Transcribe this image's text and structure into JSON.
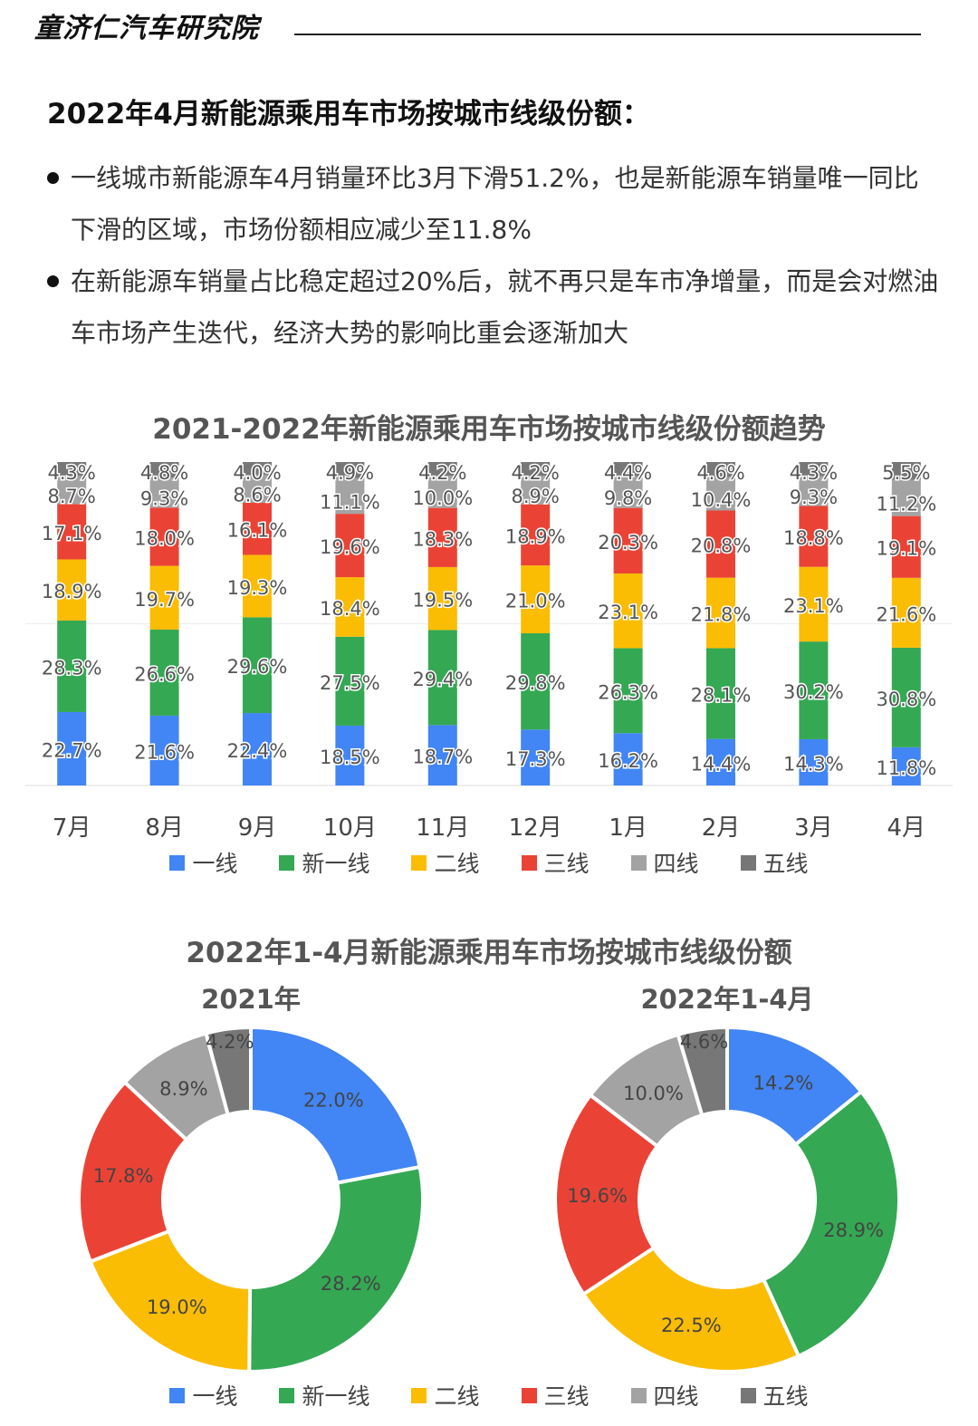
{
  "brand": "童济仁汽车研究院",
  "heading": "2022年4月新能源乘用车市场按城市线级份额：",
  "bullets": [
    "一线城市新能源车4月销量环比3月下滑51.2%，也是新能源车销量唯一同比下滑的区域，市场份额相应减少至11.8%",
    "在新能源车销量占比稳定超过20%后，就不再只是车市净增量，而是会对燃油车市场产生迭代，经济大势的影响比重会逐渐加大"
  ],
  "colors": {
    "一线": "#4285F4",
    "新一线": "#34A853",
    "二线": "#FBBC04",
    "三线": "#EA4335",
    "四线": "#A3A3A3",
    "五线": "#777777"
  },
  "chart_data": [
    {
      "type": "bar",
      "stacked": true,
      "title": "2021-2022年新能源乘用车市场按城市线级份额趋势",
      "categories": [
        "7月",
        "8月",
        "9月",
        "10月",
        "11月",
        "12月",
        "1月",
        "2月",
        "3月",
        "4月"
      ],
      "series": [
        {
          "name": "一线",
          "values": [
            "22.7%",
            "21.6%",
            "22.4%",
            "18.5%",
            "18.7%",
            "17.3%",
            "16.2%",
            "14.4%",
            "14.3%",
            "11.8%"
          ]
        },
        {
          "name": "新一线",
          "values": [
            "28.3%",
            "26.6%",
            "29.6%",
            "27.5%",
            "29.4%",
            "29.8%",
            "26.3%",
            "28.1%",
            "30.2%",
            "30.8%"
          ]
        },
        {
          "name": "二线",
          "values": [
            "18.9%",
            "19.7%",
            "19.3%",
            "18.4%",
            "19.5%",
            "21.0%",
            "23.1%",
            "21.8%",
            "23.1%",
            "21.6%"
          ]
        },
        {
          "name": "三线",
          "values": [
            "17.1%",
            "18.0%",
            "16.1%",
            "19.6%",
            "18.3%",
            "18.9%",
            "20.3%",
            "20.8%",
            "18.8%",
            "19.1%"
          ]
        },
        {
          "name": "四线",
          "values": [
            "8.7%",
            "9.3%",
            "8.6%",
            "11.1%",
            "10.0%",
            "8.9%",
            "9.8%",
            "10.4%",
            "9.3%",
            "11.2%"
          ]
        },
        {
          "name": "五线",
          "values": [
            "4.3%",
            "4.8%",
            "4.0%",
            "4.9%",
            "4.2%",
            "4.2%",
            "4.4%",
            "4.6%",
            "4.3%",
            "5.5%"
          ]
        }
      ],
      "ylim": [
        0,
        100
      ],
      "legend": "bottom"
    },
    {
      "type": "pie",
      "donut": true,
      "title": "2022年1-4月新能源乘用车市场按城市线级份额",
      "charts": [
        {
          "subtitle": "2021年",
          "labels": [
            "一线",
            "新一线",
            "二线",
            "三线",
            "四线",
            "五线"
          ],
          "values": [
            "22.0%",
            "28.2%",
            "19.0%",
            "17.8%",
            "8.9%",
            "4.2%"
          ]
        },
        {
          "subtitle": "2022年1-4月",
          "labels": [
            "一线",
            "新一线",
            "二线",
            "三线",
            "四线",
            "五线"
          ],
          "values": [
            "14.2%",
            "28.9%",
            "22.5%",
            "19.6%",
            "10.0%",
            "4.6%"
          ]
        }
      ],
      "legend": "bottom"
    }
  ]
}
